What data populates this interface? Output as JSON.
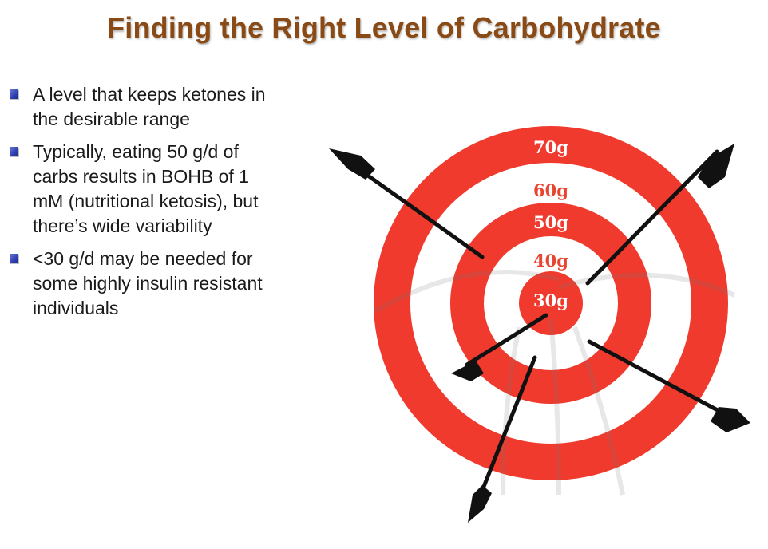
{
  "title": "Finding the Right Level of Carbohydrate",
  "bullets": [
    {
      "lines": [
        "A level that keeps ketones in",
        "the desirable range"
      ]
    },
    {
      "lines": [
        "Typically, eating 50 g/d of",
        "carbs results in BOHB of 1",
        "mM (nutritional ketosis), but",
        "there’s wide variability"
      ]
    },
    {
      "lines": [
        "<30 g/d may be needed for",
        "some highly insulin resistant",
        "individuals"
      ]
    }
  ],
  "target": {
    "ring_labels": [
      "70g",
      "60g",
      "50g",
      "40g",
      "30g"
    ],
    "colors": {
      "red": "#f03a2e",
      "white": "#ffffff",
      "arrow": "#111111",
      "label_on_red": "#ffffff",
      "label_on_white": "#e8442f"
    }
  }
}
